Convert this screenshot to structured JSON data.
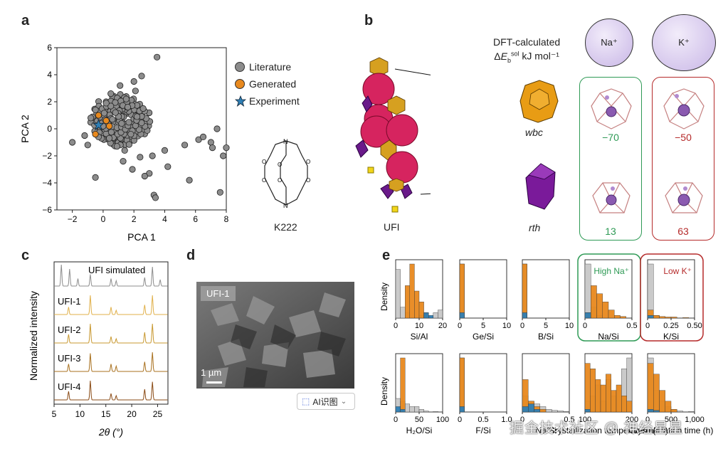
{
  "panel_labels": [
    "a",
    "b",
    "c",
    "d",
    "e"
  ],
  "colors": {
    "literature": "#8c8c8c",
    "generated": "#e8891e",
    "experiment": "#2f7fb5",
    "green": "#2e9a55",
    "red": "#b52a2a",
    "pink": "#d6245f",
    "orange": "#e8a020",
    "purple": "#6a1a8a",
    "yellow": "#f2d51a"
  },
  "panel_a": {
    "chart_data": {
      "type": "scatter",
      "xlabel": "PCA 1",
      "ylabel": "PCA 2",
      "xlim": [
        -3,
        8
      ],
      "ylim": [
        -6,
        6
      ],
      "xticks": [
        "−2",
        "0",
        "2",
        "4",
        "6",
        "8"
      ],
      "yticks": [
        "6",
        "4",
        "2",
        "0",
        "−2",
        "−4",
        "−6"
      ],
      "legend": [
        "Literature",
        "Generated",
        "Experiment"
      ],
      "series": [
        {
          "name": "Literature",
          "points": [
            [
              -2,
              -1
            ],
            [
              -1.2,
              -0.5
            ],
            [
              -1,
              -1.2
            ],
            [
              -0.8,
              0.8
            ],
            [
              -0.5,
              1.4
            ],
            [
              -0.3,
              -0.6
            ],
            [
              0,
              0.2
            ],
            [
              0.2,
              1.9
            ],
            [
              0.4,
              -0.7
            ],
            [
              0.5,
              2.6
            ],
            [
              0.8,
              1.2
            ],
            [
              0.9,
              -1.3
            ],
            [
              1.1,
              3.2
            ],
            [
              1.2,
              0.4
            ],
            [
              1.4,
              -1.6
            ],
            [
              1.5,
              2.2
            ],
            [
              1.6,
              1.6
            ],
            [
              1.8,
              -0.4
            ],
            [
              2,
              3.5
            ],
            [
              2.1,
              2.8
            ],
            [
              2.2,
              0.9
            ],
            [
              2.4,
              -2.1
            ],
            [
              2.5,
              3.9
            ],
            [
              2.6,
              1.5
            ],
            [
              3,
              -3.3
            ],
            [
              3.2,
              -2
            ],
            [
              3.3,
              -4.9
            ],
            [
              3.4,
              -5.1
            ],
            [
              3.5,
              5.3
            ],
            [
              4,
              -1.6
            ],
            [
              4.2,
              -2.8
            ],
            [
              5.3,
              -1.2
            ],
            [
              5.6,
              -3.8
            ],
            [
              6.2,
              -0.8
            ],
            [
              6.5,
              -0.6
            ],
            [
              7,
              -1
            ],
            [
              7.1,
              -1.4
            ],
            [
              7.4,
              0
            ],
            [
              7.6,
              -4.7
            ],
            [
              7.8,
              -2
            ],
            [
              8,
              -1.4
            ],
            [
              -0.5,
              -3.6
            ],
            [
              1.3,
              -2.4
            ],
            [
              1.9,
              -3
            ],
            [
              2.7,
              -3.5
            ]
          ]
        },
        {
          "name": "Generated",
          "points": [
            [
              -0.3,
              1
            ],
            [
              0.2,
              0.6
            ],
            [
              0.4,
              0.2
            ],
            [
              -0.5,
              -0.4
            ]
          ]
        },
        {
          "name": "Experiment",
          "points": [
            [
              -0.3,
              0.3
            ]
          ]
        }
      ]
    },
    "molecule_label": "K222"
  },
  "panel_b": {
    "dft_title": "DFT-calculated",
    "dft_units": "kJ mol⁻¹",
    "cations": [
      {
        "label": "Na⁺",
        "color": "#2e9a55",
        "values": {
          "wbc": "−70",
          "rth": "13"
        }
      },
      {
        "label": "K⁺",
        "color": "#b52a2a",
        "values": {
          "wbc": "−50",
          "rth": "63"
        }
      }
    ],
    "cages": [
      "wbc",
      "rth"
    ],
    "framework_label": "UFI"
  },
  "panel_c": {
    "chart_data": {
      "type": "line",
      "xlabel": "2θ (°)",
      "ylabel": "Normalized intensity",
      "xlim": [
        5,
        27
      ],
      "xticks": [
        "5",
        "10",
        "15",
        "20",
        "25"
      ],
      "series": [
        {
          "name": "UFI simulated",
          "color": "#8c8c8c",
          "peaks": [
            [
              6.4,
              1
            ],
            [
              8,
              0.8
            ],
            [
              9.6,
              0.35
            ],
            [
              12,
              0.55
            ],
            [
              16,
              0.35
            ],
            [
              17,
              0.25
            ],
            [
              22.5,
              0.4
            ],
            [
              24,
              0.9
            ],
            [
              25.5,
              0.3
            ]
          ]
        },
        {
          "name": "UFI-1",
          "color": "#e0b04a",
          "peaks": [
            [
              7.8,
              0.35
            ],
            [
              12,
              0.9
            ],
            [
              16,
              0.35
            ],
            [
              17,
              0.2
            ],
            [
              22.5,
              0.45
            ],
            [
              24,
              0.9
            ]
          ]
        },
        {
          "name": "UFI-2",
          "color": "#c89830",
          "peaks": [
            [
              7.8,
              0.4
            ],
            [
              12,
              0.9
            ],
            [
              16,
              0.3
            ],
            [
              17,
              0.2
            ],
            [
              22.5,
              0.5
            ],
            [
              24,
              0.9
            ]
          ]
        },
        {
          "name": "UFI-3",
          "color": "#a8701e",
          "peaks": [
            [
              7.8,
              0.35
            ],
            [
              12,
              0.85
            ],
            [
              16,
              0.35
            ],
            [
              17,
              0.25
            ],
            [
              22.5,
              0.45
            ],
            [
              24,
              0.9
            ]
          ]
        },
        {
          "name": "UFI-4",
          "color": "#8a4a14",
          "peaks": [
            [
              7.8,
              0.4
            ],
            [
              12,
              0.9
            ],
            [
              16,
              0.3
            ],
            [
              17,
              0.2
            ],
            [
              22.5,
              0.5
            ],
            [
              24,
              0.85
            ]
          ]
        }
      ]
    }
  },
  "panel_d": {
    "tag": "UFI-1",
    "scale_bar": "1 µm",
    "ai_button": "AI识图"
  },
  "panel_e": {
    "chart_data": [
      {
        "type": "bar",
        "xlabel": "Si/Al",
        "xticks": [
          "0",
          "10",
          "20"
        ],
        "xlim": [
          0,
          20
        ],
        "bins_gray": [
          0.9,
          0.2,
          0.1,
          0,
          0,
          0.05,
          0,
          0,
          0.1,
          0.15
        ],
        "bins_orange": [
          0,
          0,
          0.6,
          1,
          0.5,
          0.3,
          0.1,
          0,
          0,
          0
        ],
        "bins_blue": [
          0,
          0,
          0,
          0,
          0,
          0,
          0.1,
          0.05,
          0,
          0
        ]
      },
      {
        "type": "bar",
        "xlabel": "Ge/Si",
        "xticks": [
          "0",
          "5",
          "10"
        ],
        "xlim": [
          0,
          10
        ],
        "bins_gray": [
          1,
          0,
          0,
          0,
          0,
          0,
          0,
          0,
          0,
          0
        ],
        "bins_orange": [
          1,
          0,
          0,
          0,
          0,
          0,
          0,
          0,
          0,
          0
        ],
        "bins_blue": [
          0.1,
          0,
          0,
          0,
          0,
          0,
          0,
          0,
          0,
          0
        ]
      },
      {
        "type": "bar",
        "xlabel": "B/Si",
        "xticks": [
          "0",
          "5",
          "10"
        ],
        "xlim": [
          0,
          10
        ],
        "bins_gray": [
          1,
          0,
          0,
          0,
          0,
          0,
          0,
          0,
          0,
          0
        ],
        "bins_orange": [
          1,
          0,
          0,
          0,
          0,
          0,
          0,
          0,
          0,
          0
        ],
        "bins_blue": [
          0.1,
          0,
          0,
          0,
          0,
          0,
          0,
          0,
          0,
          0
        ]
      },
      {
        "type": "bar",
        "xlabel": "Na/Si",
        "xticks": [
          "0",
          "0.5"
        ],
        "xlim": [
          0,
          0.7
        ],
        "annotation": "High Na⁺",
        "bins_gray": [
          1,
          0.2,
          0.05,
          0,
          0,
          0,
          0,
          0
        ],
        "bins_orange": [
          0.1,
          0.6,
          0.45,
          0.3,
          0.15,
          0.05,
          0.03,
          0
        ],
        "bins_blue": [
          0.1,
          0,
          0,
          0,
          0,
          0,
          0,
          0
        ]
      },
      {
        "type": "bar",
        "xlabel": "K/Si",
        "xticks": [
          "0",
          "0.25",
          "0.50"
        ],
        "xlim": [
          0,
          0.5
        ],
        "annotation": "Low K⁺",
        "bins_gray": [
          1,
          0.05,
          0,
          0,
          0,
          0,
          0,
          0
        ],
        "bins_orange": [
          0.15,
          0.05,
          0.03,
          0.02,
          0.02,
          0,
          0.01,
          0
        ],
        "bins_blue": [
          0.05,
          0,
          0,
          0,
          0,
          0,
          0,
          0
        ]
      },
      {
        "type": "bar",
        "xlabel": "H₂O/Si",
        "xticks": [
          "0",
          "50",
          "100"
        ],
        "xlim": [
          0,
          100
        ],
        "bins_gray": [
          0.25,
          0.2,
          0.15,
          0.1,
          0.1,
          0.05,
          0.02,
          0,
          0.01,
          0
        ],
        "bins_orange": [
          0,
          1,
          0,
          0,
          0,
          0,
          0,
          0,
          0,
          0
        ],
        "bins_blue": [
          0.1,
          0.05,
          0,
          0,
          0,
          0,
          0,
          0,
          0,
          0
        ]
      },
      {
        "type": "bar",
        "xlabel": "F/Si",
        "xticks": [
          "0",
          "0.5",
          "1.0"
        ],
        "xlim": [
          0,
          1
        ],
        "bins_gray": [
          1,
          0,
          0,
          0,
          0,
          0,
          0,
          0,
          0,
          0
        ],
        "bins_orange": [
          1,
          0,
          0,
          0,
          0,
          0,
          0,
          0,
          0,
          0
        ],
        "bins_blue": [
          0.1,
          0,
          0,
          0,
          0,
          0,
          0,
          0,
          0,
          0
        ]
      },
      {
        "type": "bar",
        "xlabel": "Na/Si",
        "xticks": [
          "0",
          "0.5"
        ],
        "xlim": [
          0,
          0.7
        ],
        "bins_gray": [
          0.3,
          0.2,
          0.15,
          0.1,
          0.05,
          0.03,
          0.02,
          0.01
        ],
        "bins_orange": [
          0.6,
          0.2,
          0.1,
          0.05,
          0,
          0,
          0,
          0
        ],
        "bins_blue": [
          0.1,
          0.15,
          0.05,
          0,
          0,
          0,
          0,
          0
        ]
      },
      {
        "type": "bar",
        "xlabel": "Crystallization temperature (°C)",
        "xticks": [
          "100",
          "200"
        ],
        "xlim": [
          80,
          200
        ],
        "bins_gray": [
          0.2,
          0.3,
          0.5,
          0.2,
          0.6,
          0.3,
          0.4,
          0.8,
          1
        ],
        "bins_orange": [
          0.9,
          0.8,
          0.6,
          0.5,
          0.7,
          0.4,
          0.5,
          0.3,
          0.2
        ],
        "bins_blue": [
          0.05,
          0,
          0,
          0,
          0,
          0,
          0,
          0,
          0
        ]
      },
      {
        "type": "bar",
        "xlabel": "Crystallization time (h)",
        "xticks": [
          "0",
          "500",
          "1,000"
        ],
        "xlim": [
          0,
          1000
        ],
        "bins_gray": [
          1,
          0.4,
          0.2,
          0.1,
          0.05,
          0.02,
          0,
          0.01
        ],
        "bins_orange": [
          0.9,
          0.7,
          0.4,
          0.2,
          0.05,
          0,
          0,
          0
        ],
        "bins_blue": [
          0.05,
          0.03,
          0,
          0,
          0,
          0,
          0,
          0
        ]
      }
    ],
    "ylabel": "Density"
  },
  "watermark": "掘金技术社区 @ 神经星星"
}
